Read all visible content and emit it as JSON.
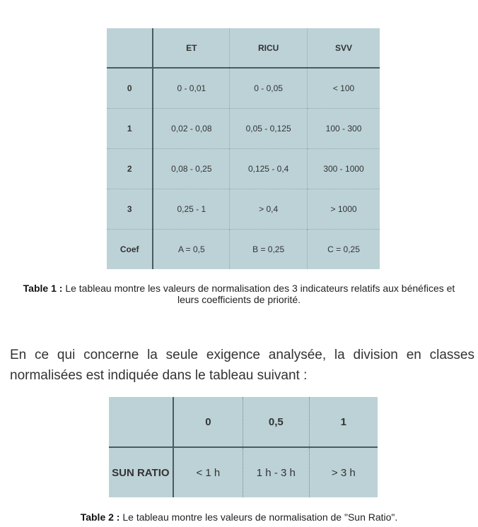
{
  "table1": {
    "headers": [
      "",
      "ET",
      "RICU",
      "SVV"
    ],
    "rows": [
      [
        "0",
        "0 - 0,01",
        "0 - 0,05",
        "< 100"
      ],
      [
        "1",
        "0,02 - 0,08",
        "0,05 - 0,125",
        "100 - 300"
      ],
      [
        "2",
        "0,08 - 0,25",
        "0,125 - 0,4",
        "300 - 1000"
      ],
      [
        "3",
        "0,25 - 1",
        "> 0,4",
        "> 1000"
      ],
      [
        "Coef",
        "A = 0,5",
        "B = 0,25",
        "C = 0,25"
      ]
    ]
  },
  "caption1": {
    "label": "Table 1 :",
    "text": " Le tableau montre les valeurs de normalisation des 3 indicateurs relatifs aux bénéfices et leurs coefficients de priorité."
  },
  "paragraph": "En ce qui concerne la seule exigence analysée, la division en classes normalisées est indiquée dans le tableau suivant :",
  "table2": {
    "headers": [
      "",
      "0",
      "0,5",
      "1"
    ],
    "rows": [
      [
        "SUN RATIO",
        "< 1 h",
        "1 h - 3 h",
        "> 3 h"
      ]
    ]
  },
  "caption2": {
    "label": "Table 2 :",
    "text": " Le tableau montre les valeurs de normalisation de \"Sun Ratio\"."
  }
}
